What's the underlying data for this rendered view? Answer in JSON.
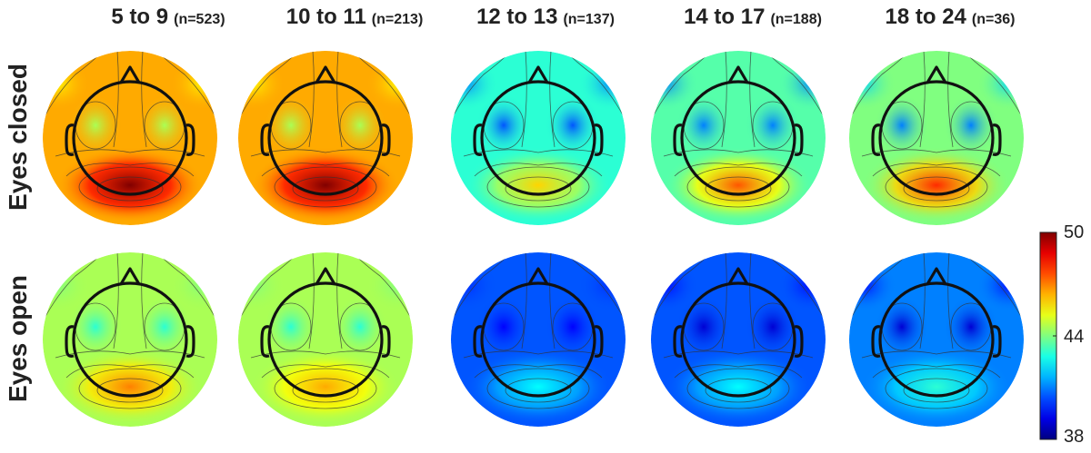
{
  "columns": [
    {
      "age": "5 to 9",
      "n": "(n=523)"
    },
    {
      "age": "10 to 11",
      "n": "(n=213)"
    },
    {
      "age": "12 to 13",
      "n": "(n=137)"
    },
    {
      "age": "14 to 17",
      "n": "(n=188)"
    },
    {
      "age": "18 to 24",
      "n": "(n=36)"
    }
  ],
  "rows": [
    "Eyes closed",
    "Eyes open"
  ],
  "colorbar": {
    "max": "50",
    "mid": "44",
    "min": "38",
    "colormap": "jet",
    "range": [
      38,
      50
    ]
  },
  "maps": [
    [
      {
        "background": 46.5,
        "posterior": 50,
        "frontal_lateral": 44.5,
        "temporal": 45.5
      },
      {
        "background": 46.5,
        "posterior": 50,
        "frontal_lateral": 44.5,
        "temporal": 45.5
      },
      {
        "background": 43,
        "posterior": 46,
        "frontal_lateral": 40.5,
        "temporal": 41
      },
      {
        "background": 43.5,
        "posterior": 47.5,
        "frontal_lateral": 41,
        "temporal": 41
      },
      {
        "background": 44,
        "posterior": 48,
        "frontal_lateral": 41,
        "temporal": 42
      }
    ],
    [
      {
        "background": 44.5,
        "posterior": 47,
        "frontal_lateral": 43,
        "temporal": 44
      },
      {
        "background": 44.5,
        "posterior": 46.5,
        "frontal_lateral": 43,
        "temporal": 44
      },
      {
        "background": 40.5,
        "posterior": 42.5,
        "frontal_lateral": 39.5,
        "temporal": 40
      },
      {
        "background": 40.5,
        "posterior": 42.5,
        "frontal_lateral": 39,
        "temporal": 39.5
      },
      {
        "background": 41,
        "posterior": 43,
        "frontal_lateral": 39,
        "temporal": 39.5
      }
    ]
  ]
}
